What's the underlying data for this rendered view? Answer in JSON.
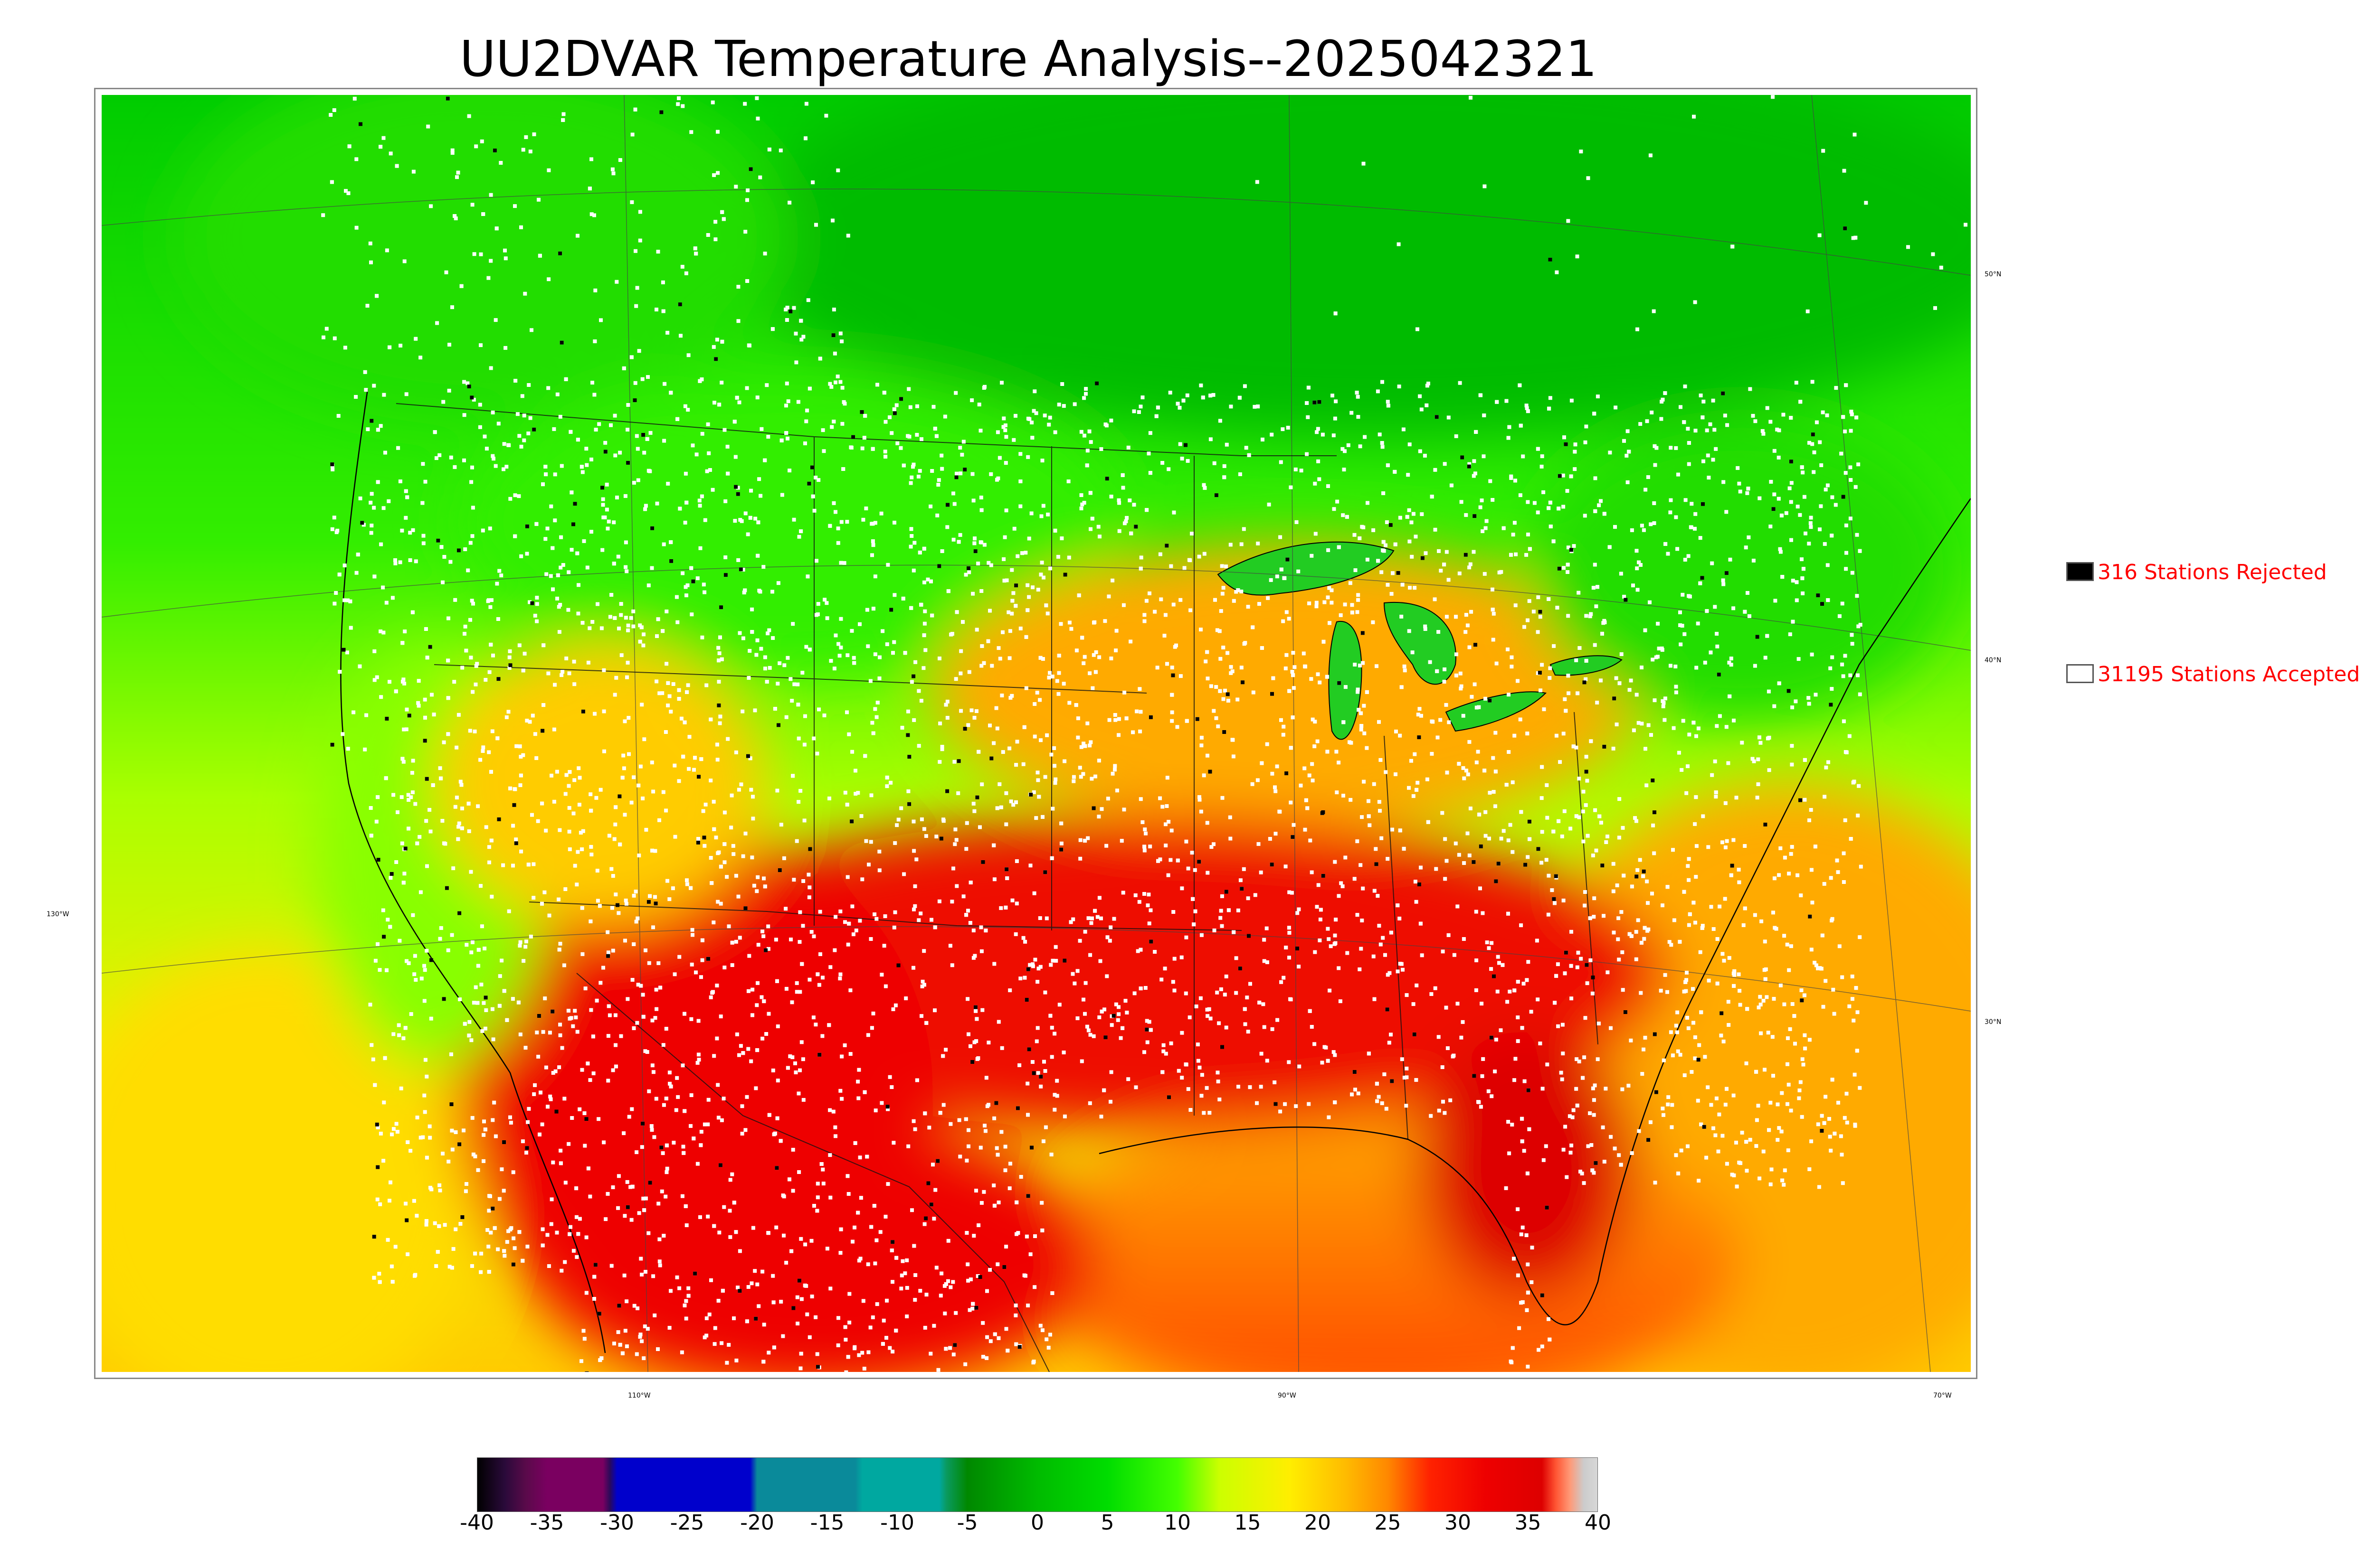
{
  "title": "UU2DVAR Temperature Analysis--2025042321",
  "legend": {
    "rejected": {
      "label": "316 Stations Rejected",
      "swatch_color": "#000000"
    },
    "accepted": {
      "label": "31195 Stations Accepted",
      "swatch_color": "#ffffff"
    }
  },
  "graticule": {
    "lat_labels": [
      "50°N",
      "40°N",
      "30°N"
    ],
    "lon_labels": [
      "130°W",
      "110°W",
      "90°W",
      "70°W"
    ]
  },
  "colorbar": {
    "ticks": [
      "-40",
      "-35",
      "-30",
      "-25",
      "-20",
      "-15",
      "-10",
      "-5",
      "0",
      "5",
      "10",
      "15",
      "20",
      "25",
      "30",
      "35",
      "40"
    ],
    "range": [
      -40,
      40
    ],
    "stops": [
      {
        "v": -40,
        "c": "#000000"
      },
      {
        "v": -38,
        "c": "#2a0a3a"
      },
      {
        "v": -36.5,
        "c": "#5a0a4a"
      },
      {
        "v": -35,
        "c": "#7a0060"
      },
      {
        "v": -31,
        "c": "#7a0060"
      },
      {
        "v": -30.5,
        "c": "#2a0a5a"
      },
      {
        "v": -30,
        "c": "#0000cc"
      },
      {
        "v": -20.5,
        "c": "#0000cc"
      },
      {
        "v": -20,
        "c": "#0a8a9a"
      },
      {
        "v": -13,
        "c": "#0a8a9a"
      },
      {
        "v": -12.5,
        "c": "#00a8a0"
      },
      {
        "v": -7,
        "c": "#00a8a0"
      },
      {
        "v": -6.5,
        "c": "#0a9a60"
      },
      {
        "v": -5,
        "c": "#008800"
      },
      {
        "v": 0,
        "c": "#00bb00"
      },
      {
        "v": 5,
        "c": "#00dd00"
      },
      {
        "v": 10,
        "c": "#44ff00"
      },
      {
        "v": 13,
        "c": "#ccff00"
      },
      {
        "v": 18,
        "c": "#ffee00"
      },
      {
        "v": 22,
        "c": "#ffbb00"
      },
      {
        "v": 25,
        "c": "#ff8800"
      },
      {
        "v": 28,
        "c": "#ff2200"
      },
      {
        "v": 32,
        "c": "#ee0000"
      },
      {
        "v": 36,
        "c": "#dd0000"
      },
      {
        "v": 37,
        "c": "#ff5533"
      },
      {
        "v": 38,
        "c": "#ff9977"
      },
      {
        "v": 39,
        "c": "#cccccc"
      },
      {
        "v": 40,
        "c": "#d8d8d8"
      }
    ]
  },
  "colors": {
    "ocean_cold": "#00cc00",
    "ocean_mid": "#ccff00",
    "warm_ocean": "#ff9900",
    "hot_land": "#ee0000",
    "accepted_station": "#ffffff",
    "rejected_station": "#000000",
    "legend_text": "#ff0000"
  }
}
